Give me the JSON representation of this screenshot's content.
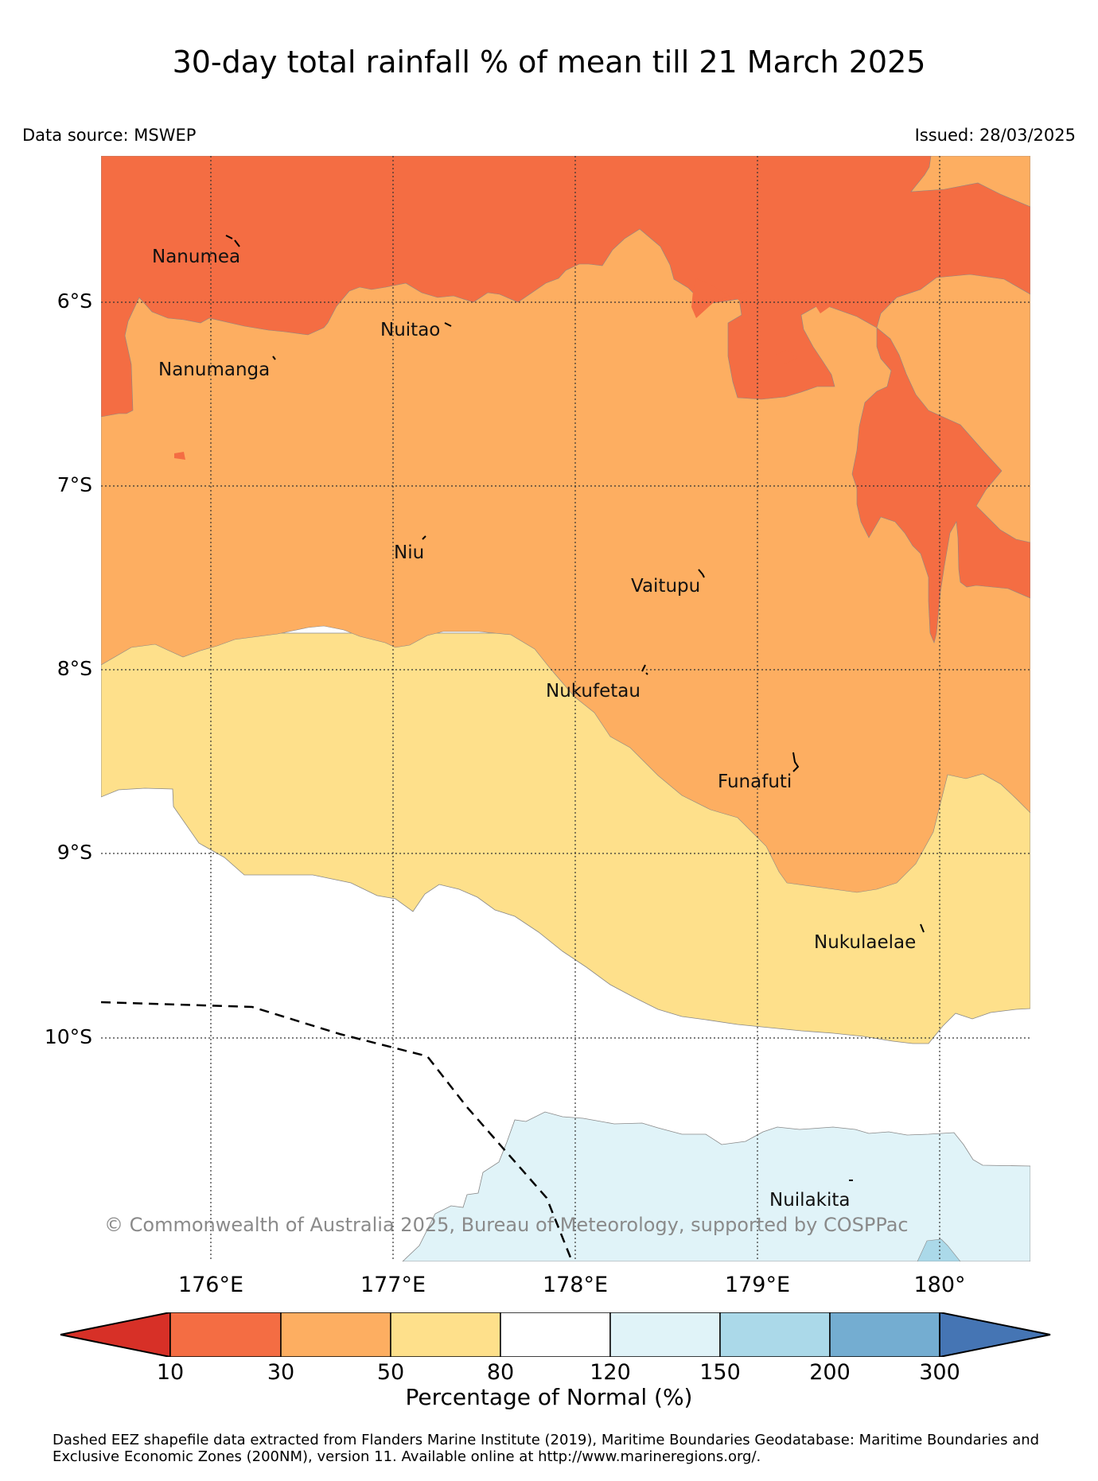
{
  "title": "30-day total rainfall % of mean till 21 March 2025",
  "data_source": "Data source: MSWEP",
  "issued": "Issued: 28/03/2025",
  "latitude_labels": [
    "6°S",
    "7°S",
    "8°S",
    "9°S",
    "10°S"
  ],
  "longitude_labels": [
    "176°E",
    "177°E",
    "178°E",
    "179°E",
    "180°"
  ],
  "places": {
    "nanumea": "Nanumea",
    "nuitao": "Nuitao",
    "nanumanga": "Nanumanga",
    "niu": "Niu",
    "vaitupu": "Vaitupu",
    "nukufetau": "Nukufetau",
    "funafuti": "Funafuti",
    "nukulaelae": "Nukulaelae",
    "nuilakita": "Nuilakita"
  },
  "copyright": "© Commonwealth of Australia 2025, Bureau of Meteorology, supported by COSPPac",
  "colorbar": {
    "title": "Percentage of Normal (%)",
    "ticks": [
      "10",
      "30",
      "50",
      "80",
      "120",
      "150",
      "200",
      "300"
    ],
    "colors": [
      "#d73027",
      "#f46d43",
      "#fdae61",
      "#fee08b",
      "#ffffff",
      "#e0f3f8",
      "#abd9e9",
      "#74add1",
      "#4575b4"
    ]
  },
  "colors": {
    "band_10_30": "#f46d43",
    "band_30_50": "#fdae61",
    "band_50_80": "#fee08b",
    "band_80_120": "#ffffff",
    "band_120_150": "#e0f3f8",
    "band_150_200": "#abd9e9"
  },
  "footnote": "Dashed EEZ shapefile data extracted from Flanders Marine Institute (2019), Maritime Boundaries Geodatabase: Maritime Boundaries and Exclusive Economic Zones (200NM), version 11. Available online at http://www.marineregions.org/."
}
